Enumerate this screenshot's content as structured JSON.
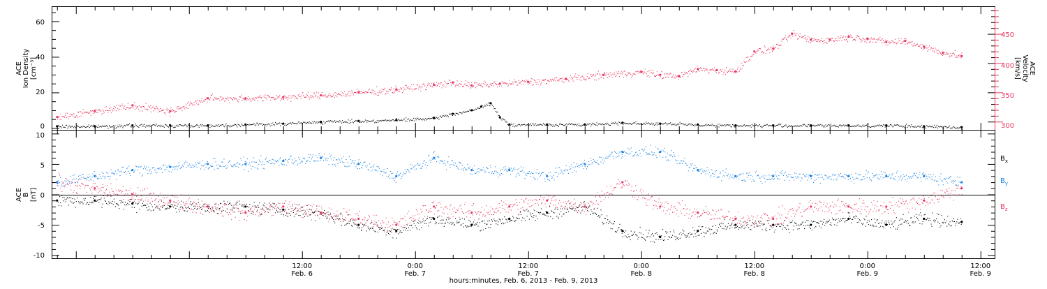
{
  "colors": {
    "black": "#000000",
    "pink": "#e8375f",
    "blue": "#1a82e2"
  },
  "x_axis": {
    "title": "hours:minutes, Feb. 6, 2013 - Feb. 9, 2013",
    "range_hours": [
      -14.5,
      85.5
    ],
    "ticks": [
      {
        "h": 12,
        "l1": "12:00",
        "l2": "Feb. 6"
      },
      {
        "h": 24,
        "l1": "0:00",
        "l2": "Feb. 7"
      },
      {
        "h": 36,
        "l1": "12:00",
        "l2": "Feb. 7"
      },
      {
        "h": 48,
        "l1": "0:00",
        "l2": "Feb. 8"
      },
      {
        "h": 60,
        "l1": "12:00",
        "l2": "Feb. 8"
      },
      {
        "h": 72,
        "l1": "0:00",
        "l2": "Feb. 9"
      },
      {
        "h": 84,
        "l1": "12:00",
        "l2": "Feb. 9"
      }
    ]
  },
  "panel1": {
    "left_label": [
      "ACE",
      "Ion Density",
      "[cm⁻³]"
    ],
    "right_label": [
      "ACE",
      "Velocity",
      "[km/s]"
    ],
    "left_ticks": [
      "0",
      "20",
      "40",
      "60"
    ],
    "right_ticks": [
      "300",
      "350",
      "400",
      "450"
    ]
  },
  "panel2": {
    "left_label": [
      "ACE",
      "B",
      "[nT]"
    ],
    "left_ticks": [
      "-10",
      "-5",
      "0",
      "5",
      "10"
    ],
    "legend": [
      "Bx",
      "By",
      "Bz"
    ]
  },
  "chart_data": [
    {
      "type": "scatter",
      "title": "",
      "xlabel": "hours:minutes, Feb. 6, 2013 - Feb. 9, 2013",
      "ylabel": "ACE Ion Density [cm⁻³]",
      "ylim": [
        -1,
        68
      ],
      "y2label": "ACE Velocity [km/s]",
      "y2lim": [
        286,
        496
      ],
      "series": [
        {
          "name": "Ion Density",
          "axis": "left",
          "color": "#000000",
          "x": [
            -14,
            -10,
            -6,
            -2,
            2,
            6,
            10,
            14,
            18,
            22,
            26,
            28,
            30,
            31,
            32,
            33,
            34,
            38,
            42,
            46,
            50,
            54,
            58,
            62,
            66,
            70,
            74,
            78,
            82
          ],
          "y": [
            1,
            1,
            1.5,
            1.5,
            1.5,
            2,
            2.5,
            3.5,
            4,
            4.5,
            5.5,
            8,
            10,
            12,
            14,
            6,
            2,
            2,
            2,
            3,
            2.5,
            2,
            1.5,
            1.5,
            1.5,
            1.5,
            1.5,
            1,
            0.5
          ]
        },
        {
          "name": "Velocity",
          "axis": "right",
          "color": "#e8375f",
          "x": [
            -14,
            -10,
            -6,
            -2,
            2,
            6,
            10,
            14,
            18,
            22,
            26,
            28,
            30,
            33,
            36,
            40,
            44,
            48,
            50,
            52,
            54,
            56,
            58,
            60,
            62,
            64,
            66,
            68,
            70,
            72,
            74,
            76,
            78,
            80,
            82
          ],
          "y": [
            308,
            318,
            328,
            318,
            340,
            340,
            342,
            345,
            350,
            355,
            363,
            367,
            362,
            365,
            368,
            373,
            380,
            385,
            380,
            378,
            390,
            388,
            386,
            420,
            425,
            450,
            440,
            440,
            445,
            442,
            436,
            438,
            428,
            418,
            412
          ]
        }
      ]
    },
    {
      "type": "scatter",
      "title": "",
      "xlabel": "hours:minutes, Feb. 6, 2013 - Feb. 9, 2013",
      "ylabel": "ACE B [nT]",
      "ylim": [
        -10.5,
        10.5
      ],
      "series": [
        {
          "name": "Bx",
          "color": "#000000",
          "x": [
            -14,
            -10,
            -6,
            -2,
            2,
            6,
            10,
            14,
            18,
            22,
            26,
            30,
            34,
            38,
            42,
            46,
            50,
            54,
            58,
            62,
            66,
            70,
            74,
            78,
            82
          ],
          "y": [
            -1,
            -1,
            -1.5,
            -2,
            -2,
            -2,
            -2.5,
            -3,
            -5,
            -6,
            -4,
            -5,
            -4,
            -3,
            -2,
            -6,
            -7,
            -6,
            -5,
            -5,
            -5,
            -4,
            -5,
            -4,
            -4.5
          ]
        },
        {
          "name": "By",
          "color": "#1a82e2",
          "x": [
            -14,
            -10,
            -6,
            -2,
            2,
            6,
            10,
            14,
            18,
            22,
            26,
            30,
            34,
            38,
            42,
            46,
            50,
            54,
            58,
            62,
            66,
            70,
            74,
            78,
            82
          ],
          "y": [
            2,
            3,
            4,
            4.5,
            5,
            5,
            5.5,
            6,
            5,
            3,
            6,
            4,
            4,
            3,
            5,
            7,
            7,
            4,
            3,
            3,
            3,
            3,
            3,
            3,
            2
          ]
        },
        {
          "name": "Bz",
          "color": "#e8375f",
          "x": [
            -14,
            -10,
            -6,
            -2,
            2,
            6,
            10,
            14,
            18,
            22,
            26,
            30,
            34,
            38,
            42,
            46,
            50,
            54,
            58,
            62,
            66,
            70,
            74,
            78,
            82
          ],
          "y": [
            2,
            1,
            0,
            -1,
            -2,
            -3,
            -2,
            -3,
            -4,
            -5,
            -2,
            -3,
            -2,
            -1,
            -2,
            2,
            -2,
            -3,
            -4,
            -4,
            -2,
            -2,
            -2,
            -1,
            1
          ]
        }
      ]
    }
  ]
}
